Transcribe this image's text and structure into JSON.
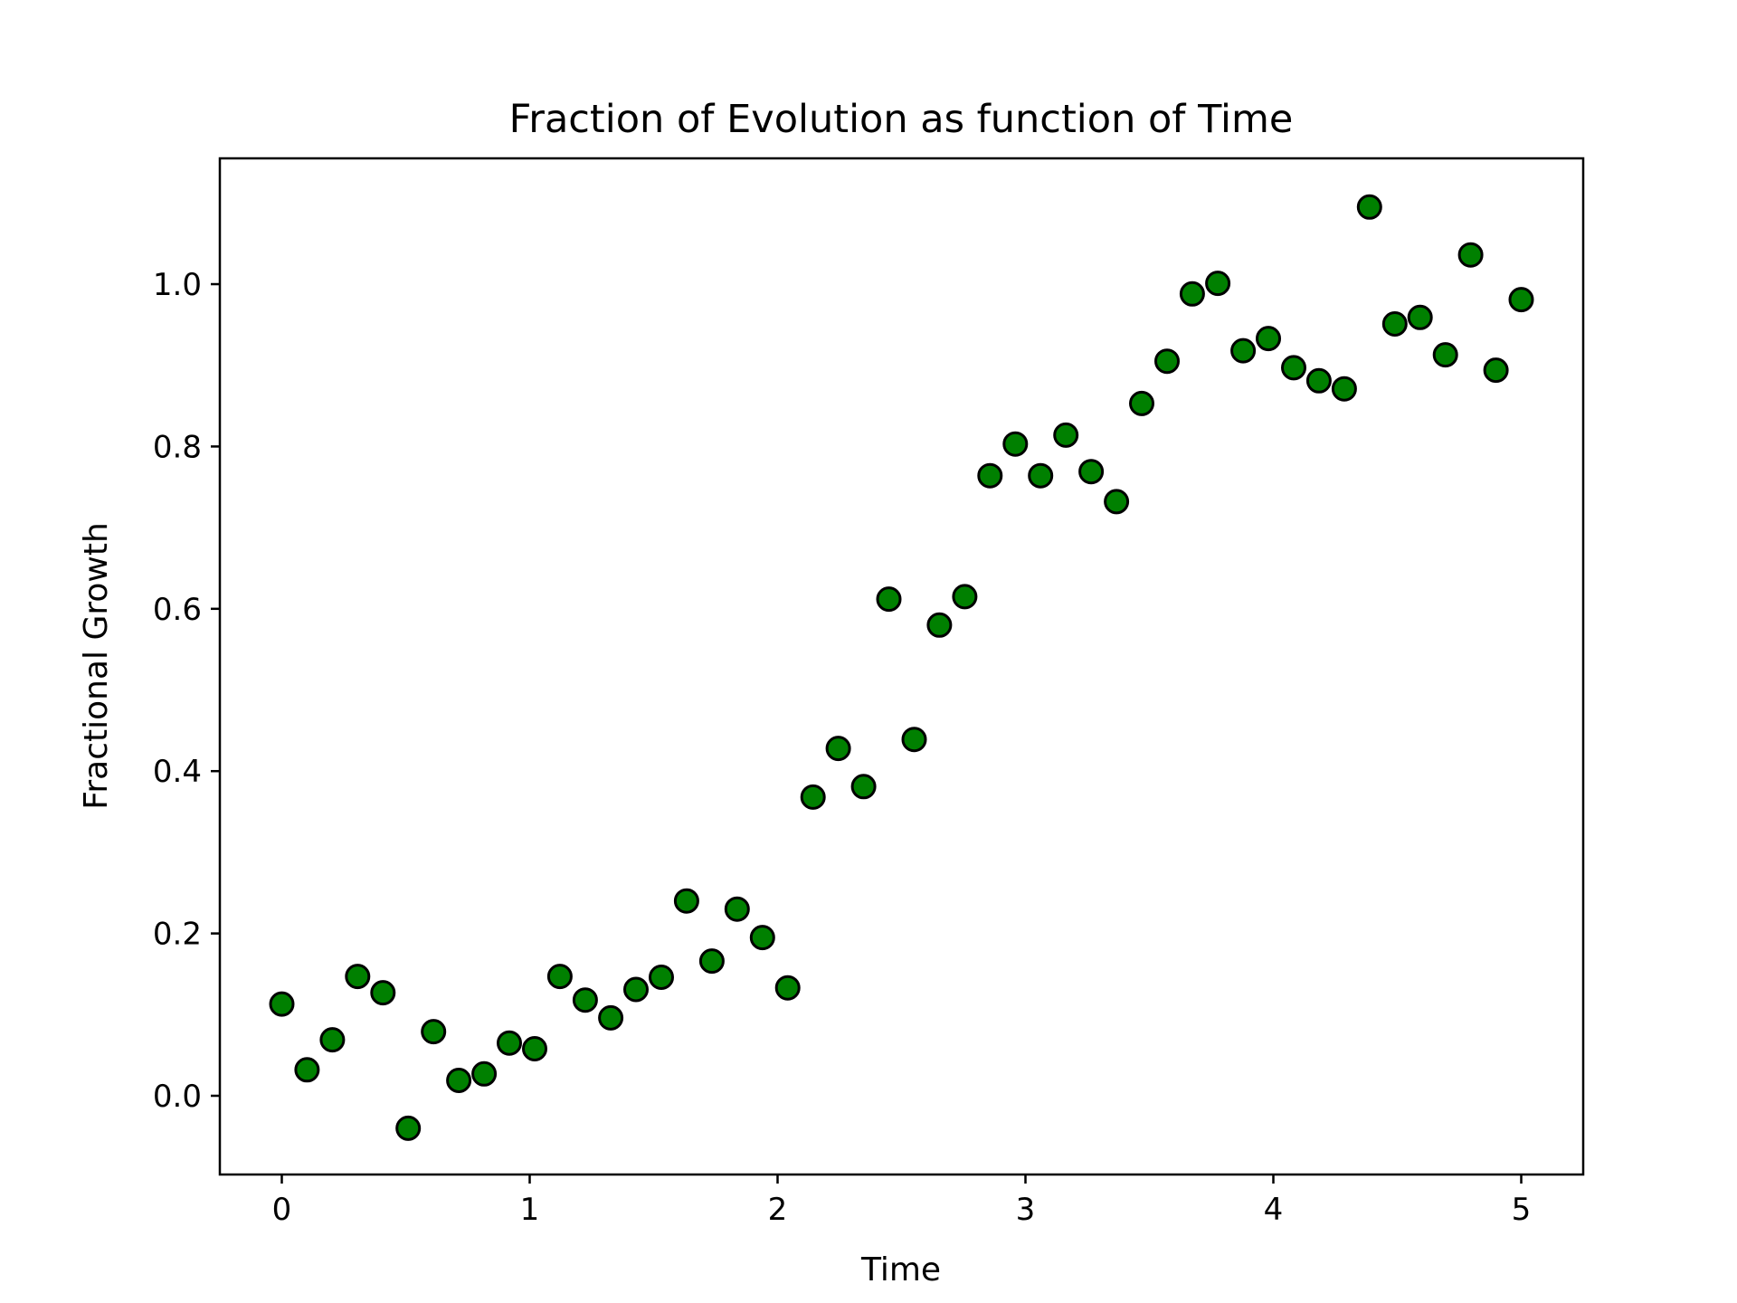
{
  "chart_data": {
    "type": "scatter",
    "title": "Fraction of Evolution as function of Time",
    "xlabel": "Time",
    "ylabel": "Fractional Growth",
    "xlim": [
      -0.25,
      5.25
    ],
    "ylim": [
      -0.097,
      1.155
    ],
    "xticks": [
      0,
      1,
      2,
      3,
      4,
      5
    ],
    "xtick_labels": [
      "0",
      "1",
      "2",
      "3",
      "4",
      "5"
    ],
    "yticks": [
      0.0,
      0.2,
      0.4,
      0.6,
      0.8,
      1.0
    ],
    "ytick_labels": [
      "0.0",
      "0.2",
      "0.4",
      "0.6",
      "0.8",
      "1.0"
    ],
    "grid": false,
    "marker_color": "#008000",
    "marker_edge_color": "#000000",
    "x": [
      0.0,
      0.102,
      0.204,
      0.306,
      0.408,
      0.51,
      0.612,
      0.714,
      0.816,
      0.918,
      1.02,
      1.122,
      1.224,
      1.327,
      1.429,
      1.531,
      1.633,
      1.735,
      1.837,
      1.939,
      2.041,
      2.143,
      2.245,
      2.347,
      2.449,
      2.551,
      2.653,
      2.755,
      2.857,
      2.959,
      3.061,
      3.163,
      3.265,
      3.367,
      3.469,
      3.571,
      3.673,
      3.776,
      3.878,
      3.98,
      4.082,
      4.184,
      4.286,
      4.388,
      4.49,
      4.592,
      4.694,
      4.796,
      4.898,
      5.0
    ],
    "y": [
      0.113,
      0.032,
      0.069,
      0.147,
      0.127,
      -0.04,
      0.079,
      0.019,
      0.027,
      0.065,
      0.058,
      0.147,
      0.118,
      0.096,
      0.131,
      0.146,
      0.24,
      0.166,
      0.23,
      0.195,
      0.133,
      0.368,
      0.428,
      0.381,
      0.612,
      0.439,
      0.58,
      0.615,
      0.764,
      0.803,
      0.764,
      0.814,
      0.769,
      0.732,
      0.853,
      0.905,
      0.988,
      1.001,
      0.918,
      0.933,
      0.897,
      0.881,
      0.871,
      1.095,
      0.951,
      0.959,
      0.913,
      1.036,
      0.894,
      0.981
    ]
  }
}
